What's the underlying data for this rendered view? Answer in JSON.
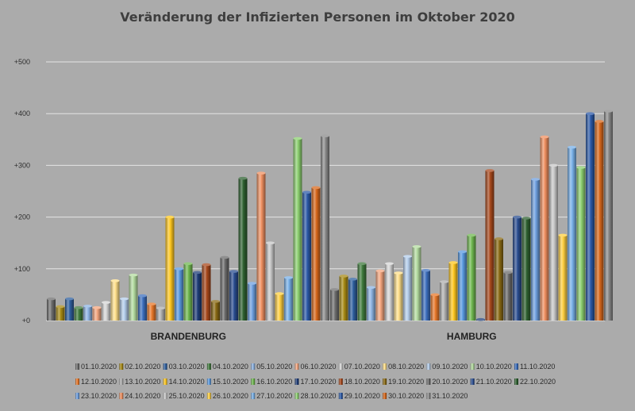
{
  "chart_data": {
    "type": "bar",
    "title": "Veränderung der Infizierten Personen im Oktober 2020",
    "xlabel": "",
    "ylabel": "",
    "ylim": [
      0,
      500
    ],
    "yticks": [
      "+0",
      "+100",
      "+200",
      "+300",
      "+400",
      "+500"
    ],
    "ytick_values": [
      0,
      100,
      200,
      300,
      400,
      500
    ],
    "grid": true,
    "legend_position": "bottom",
    "categories": [
      "BRANDENBURG",
      "HAMBURG"
    ],
    "series": [
      {
        "name": "01.10.2020",
        "color": "#6e6e6e",
        "values": [
          42,
          60
        ]
      },
      {
        "name": "02.10.2020",
        "color": "#a88a14",
        "values": [
          27,
          86
        ]
      },
      {
        "name": "03.10.2020",
        "color": "#2e5f9e",
        "values": [
          42,
          80
        ]
      },
      {
        "name": "04.10.2020",
        "color": "#3f7a3c",
        "values": [
          25,
          110
        ]
      },
      {
        "name": "05.10.2020",
        "color": "#8eb4e3",
        "values": [
          28,
          64
        ]
      },
      {
        "name": "06.10.2020",
        "color": "#f4a57e",
        "values": [
          25,
          96
        ]
      },
      {
        "name": "07.10.2020",
        "color": "#d6d6d6",
        "values": [
          35,
          110
        ]
      },
      {
        "name": "08.10.2020",
        "color": "#ffe08a",
        "values": [
          77,
          92
        ]
      },
      {
        "name": "09.10.2020",
        "color": "#b4cdeb",
        "values": [
          42,
          124
        ]
      },
      {
        "name": "10.10.2020",
        "color": "#b4dca0",
        "values": [
          88,
          143
        ]
      },
      {
        "name": "11.10.2020",
        "color": "#3c6fbe",
        "values": [
          48,
          97
        ]
      },
      {
        "name": "12.10.2020",
        "color": "#e8782a",
        "values": [
          32,
          50
        ]
      },
      {
        "name": "13.10.2020",
        "color": "#b0b0b0",
        "values": [
          24,
          75
        ]
      },
      {
        "name": "14.10.2020",
        "color": "#ffc820",
        "values": [
          200,
          112
        ]
      },
      {
        "name": "15.10.2020",
        "color": "#5a9ae0",
        "values": [
          100,
          133
        ]
      },
      {
        "name": "16.10.2020",
        "color": "#70b850",
        "values": [
          110,
          165
        ]
      },
      {
        "name": "17.10.2020",
        "color": "#1f3d78",
        "values": [
          93,
          2
        ]
      },
      {
        "name": "18.10.2020",
        "color": "#a8481c",
        "values": [
          108,
          290
        ]
      },
      {
        "name": "19.10.2020",
        "color": "#8a6a14",
        "values": [
          37,
          158
        ]
      },
      {
        "name": "20.10.2020",
        "color": "#6a6a6a",
        "values": [
          122,
          93
        ]
      },
      {
        "name": "21.10.2020",
        "color": "#2a4d90",
        "values": [
          95,
          200
        ]
      },
      {
        "name": "22.10.2020",
        "color": "#2e6030",
        "values": [
          275,
          198
        ]
      },
      {
        "name": "23.10.2020",
        "color": "#6fa0e0",
        "values": [
          72,
          273
        ]
      },
      {
        "name": "24.10.2020",
        "color": "#f09060",
        "values": [
          285,
          355
        ]
      },
      {
        "name": "25.10.2020",
        "color": "#c8c8c8",
        "values": [
          150,
          300
        ]
      },
      {
        "name": "26.10.2020",
        "color": "#ffd040",
        "values": [
          52,
          165
        ]
      },
      {
        "name": "27.10.2020",
        "color": "#78b0e8",
        "values": [
          83,
          335
        ]
      },
      {
        "name": "28.10.2020",
        "color": "#8cd070",
        "values": [
          352,
          296
        ]
      },
      {
        "name": "29.10.2020",
        "color": "#2c5aa8",
        "values": [
          248,
          400
        ]
      },
      {
        "name": "30.10.2020",
        "color": "#d8681c",
        "values": [
          257,
          385
        ]
      },
      {
        "name": "31.10.2020",
        "color": "#8a8a8a",
        "values": [
          357,
          405
        ]
      }
    ]
  }
}
